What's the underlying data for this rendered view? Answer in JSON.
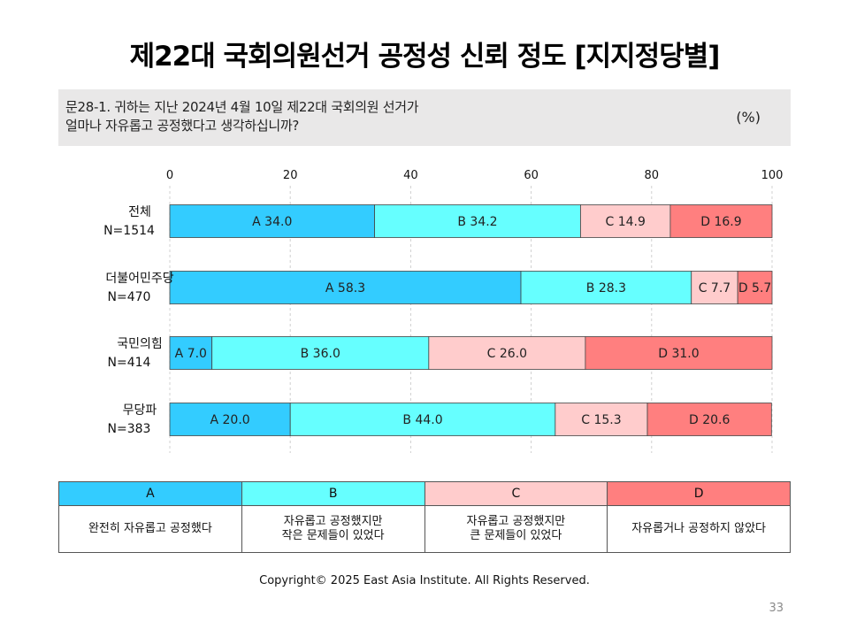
{
  "title": "제22대 국회의원선거 공정성 신뢰 정도 [지지정당별]",
  "question": {
    "line1": "문28-1. 귀하는 지난 2024년 4월 10일 제22대 국회의원 선거가",
    "line2": "얼마나 자유롭고 공정했다고 생각하십니까?",
    "unit": "(%)"
  },
  "chart_data": {
    "type": "bar",
    "orientation": "horizontal",
    "stacked": true,
    "xlim": [
      0,
      100
    ],
    "xticks": [
      "0",
      "20",
      "40",
      "60",
      "80",
      "100"
    ],
    "grid": true,
    "categories": [
      {
        "label": "전체",
        "n": "N=1514"
      },
      {
        "label": "더불어민주당",
        "n": "N=470"
      },
      {
        "label": "국민의힘",
        "n": "N=414"
      },
      {
        "label": "무당파",
        "n": "N=383"
      }
    ],
    "series": [
      {
        "name": "A",
        "color": "#33ccff",
        "values": [
          34.0,
          58.3,
          7.0,
          20.0
        ]
      },
      {
        "name": "B",
        "color": "#66ffff",
        "values": [
          34.2,
          28.3,
          36.0,
          44.0
        ]
      },
      {
        "name": "C",
        "color": "#ffcccc",
        "values": [
          14.9,
          7.7,
          26.0,
          15.3
        ]
      },
      {
        "name": "D",
        "color": "#ff7f7f",
        "values": [
          16.9,
          5.7,
          31.0,
          20.6
        ]
      }
    ]
  },
  "legend": {
    "headers": [
      "A",
      "B",
      "C",
      "D"
    ],
    "descriptions": [
      "완전히 자유롭고 공정했다",
      "자유롭고 공정했지만\n작은 문제들이 있었다",
      "자유롭고 공정했지만\n큰 문제들이 있었다",
      "자유롭거나 공정하지 않았다"
    ]
  },
  "footer": {
    "copyright": "Copyright© 2025 East Asia Institute. All Rights Reserved.",
    "page_number": "33"
  }
}
